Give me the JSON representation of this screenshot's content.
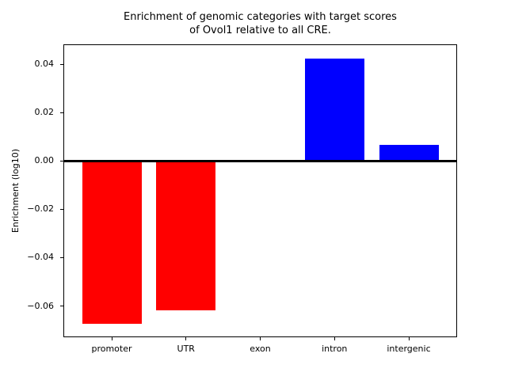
{
  "chart_data": {
    "type": "bar",
    "title": "Enrichment of genomic categories with target scores\nof Ovol1 relative to all CRE.",
    "ylabel": "Enrichment (log10)",
    "xlabel": "",
    "categories": [
      "promoter",
      "UTR",
      "exon",
      "intron",
      "intergenic"
    ],
    "values": [
      -0.0674,
      -0.0619,
      0.0,
      0.0423,
      0.0066
    ],
    "bar_colors": [
      "#ff0000",
      "#ff0000",
      "#ff0000",
      "#0000ff",
      "#0000ff"
    ],
    "negative_color": "#ff0000",
    "positive_color": "#0000ff",
    "yticks": [
      0.04,
      0.02,
      0.0,
      -0.02,
      -0.04,
      -0.06
    ],
    "ytick_labels": [
      "0.04",
      "0.02",
      "0.00",
      "−0.02",
      "−0.04",
      "−0.06"
    ],
    "ylim": [
      -0.0726,
      0.0479
    ],
    "bar_width": 0.8,
    "zero_line": true,
    "grid": false,
    "legend": false,
    "background_color": "#ffffff",
    "axis_color": "#000000"
  }
}
